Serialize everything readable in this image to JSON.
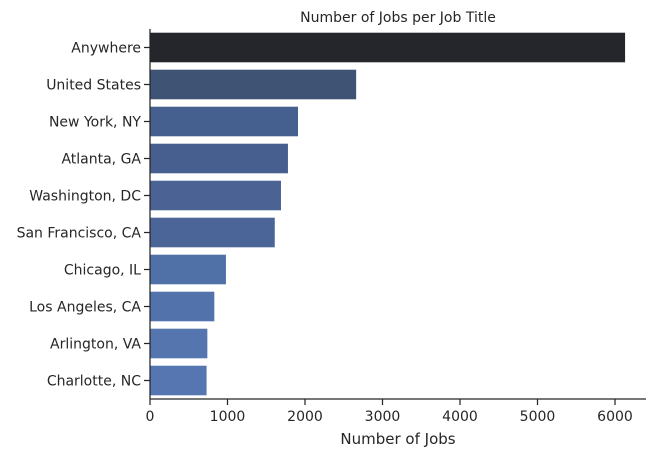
{
  "chart_data": {
    "type": "bar",
    "orientation": "horizontal",
    "title": "Number of Jobs per Job Title",
    "xlabel": "Number of Jobs",
    "ylabel": "",
    "categories": [
      "Anywhere",
      "United States",
      "New York, NY",
      "Atlanta, GA",
      "Washington, DC",
      "San Francisco, CA",
      "Chicago, IL",
      "Los Angeles, CA",
      "Arlington, VA",
      "Charlotte, NC"
    ],
    "values": [
      6130,
      2660,
      1910,
      1780,
      1690,
      1610,
      980,
      830,
      740,
      730
    ],
    "colors": [
      "#25262b",
      "#3f5475",
      "#45608f",
      "#475f8e",
      "#4a6394",
      "#4b6598",
      "#5070a8",
      "#5272ab",
      "#5475ae",
      "#5576b1"
    ],
    "xlim": [
      0,
      6400
    ],
    "xticks": [
      0,
      1000,
      2000,
      3000,
      4000,
      5000,
      6000
    ],
    "grid": false,
    "legend": "none"
  }
}
